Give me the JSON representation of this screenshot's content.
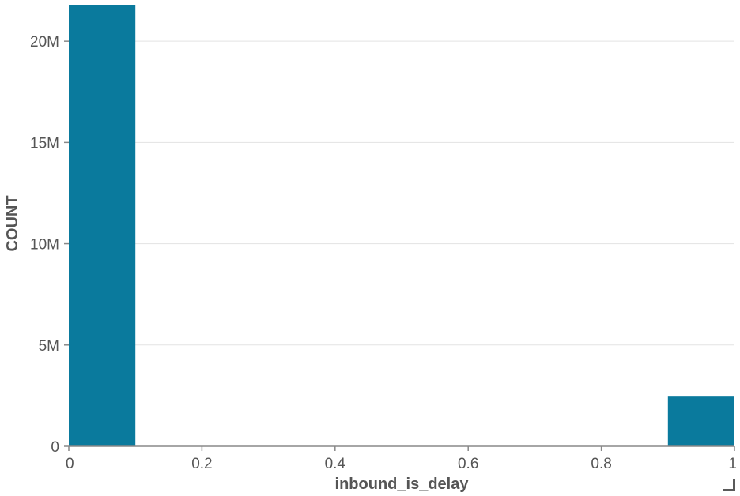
{
  "chart_data": {
    "type": "bar",
    "xlabel": "inbound_is_delay",
    "ylabel": "COUNT",
    "bins": [
      {
        "x0": 0,
        "x1": 0.1,
        "value": 21800000
      },
      {
        "x0": 0.9,
        "x1": 1.0,
        "value": 2450000
      }
    ],
    "xlim": [
      0,
      1
    ],
    "ylim": [
      0,
      21800000
    ],
    "x_ticks": [
      0,
      0.2,
      0.4,
      0.6,
      0.8,
      1
    ],
    "x_tick_labels": [
      "0",
      "0.2",
      "0.4",
      "0.6",
      "0.8",
      "1"
    ],
    "y_ticks": [
      0,
      5000000,
      10000000,
      15000000,
      20000000
    ],
    "y_tick_labels": [
      "0",
      "5M",
      "10M",
      "15M",
      "20M"
    ],
    "grid": true,
    "bar_color": "#0a7a9d"
  }
}
